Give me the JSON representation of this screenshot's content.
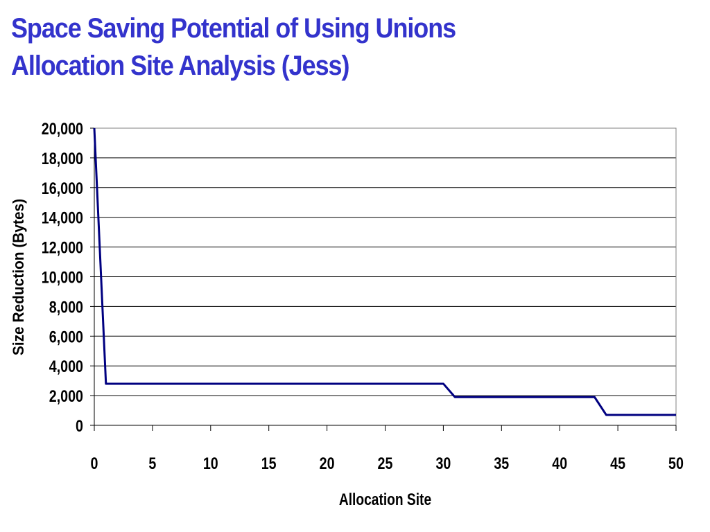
{
  "title": {
    "line1": "Space Saving Potential of Using Unions",
    "line2": "Allocation Site Analysis (Jess)"
  },
  "colors": {
    "title": "#3333cc",
    "series": "#000080",
    "grid": "#000000"
  },
  "chart_data": {
    "type": "line",
    "xlabel": "Allocation Site",
    "ylabel": "Size Reduction (Bytes)",
    "xlim": [
      0,
      50
    ],
    "ylim": [
      0,
      20000
    ],
    "x_ticks": [
      0,
      5,
      10,
      15,
      20,
      25,
      30,
      35,
      40,
      45,
      50
    ],
    "y_ticks": [
      0,
      2000,
      4000,
      6000,
      8000,
      10000,
      12000,
      14000,
      16000,
      18000,
      20000
    ],
    "x_tick_labels": [
      "0",
      "5",
      "10",
      "15",
      "20",
      "25",
      "30",
      "35",
      "40",
      "45",
      "50"
    ],
    "y_tick_labels": [
      "0",
      "2,000",
      "4,000",
      "6,000",
      "8,000",
      "10,000",
      "12,000",
      "14,000",
      "16,000",
      "18,000",
      "20,000"
    ],
    "grid": true,
    "legend": "none",
    "series": [
      {
        "x": [
          0,
          1,
          2,
          3,
          4,
          5,
          6,
          7,
          8,
          9,
          10,
          11,
          12,
          13,
          14,
          15,
          16,
          17,
          18,
          19,
          20,
          21,
          22,
          23,
          24,
          25,
          26,
          27,
          28,
          29,
          30,
          31,
          32,
          33,
          34,
          35,
          36,
          37,
          38,
          39,
          40,
          41,
          42,
          43,
          44,
          45,
          46,
          47,
          48,
          49,
          50
        ],
        "y": [
          20000,
          2800,
          2800,
          2800,
          2800,
          2800,
          2800,
          2800,
          2800,
          2800,
          2800,
          2800,
          2800,
          2800,
          2800,
          2800,
          2800,
          2800,
          2800,
          2800,
          2800,
          2800,
          2800,
          2800,
          2800,
          2800,
          2800,
          2800,
          2800,
          2800,
          2800,
          1900,
          1900,
          1900,
          1900,
          1900,
          1900,
          1900,
          1900,
          1900,
          1900,
          1900,
          1900,
          1900,
          700,
          700,
          700,
          700,
          700,
          700,
          700
        ]
      }
    ]
  }
}
